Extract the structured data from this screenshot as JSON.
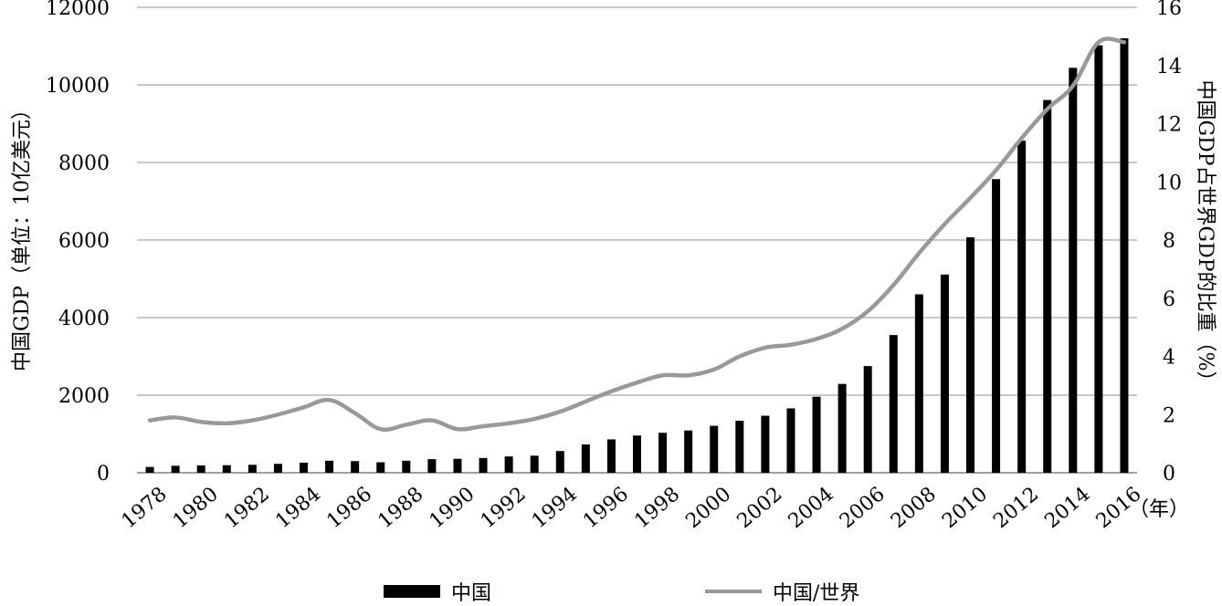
{
  "chart_data": {
    "type": "bar",
    "categories": [
      "1978",
      "1979",
      "1980",
      "1981",
      "1982",
      "1983",
      "1984",
      "1985",
      "1986",
      "1987",
      "1988",
      "1989",
      "1990",
      "1991",
      "1992",
      "1993",
      "1994",
      "1995",
      "1996",
      "1997",
      "1998",
      "1999",
      "2000",
      "2001",
      "2002",
      "2003",
      "2004",
      "2005",
      "2006",
      "2007",
      "2008",
      "2009",
      "2010",
      "2011",
      "2012",
      "2013",
      "2014",
      "2015",
      "2016"
    ],
    "x_tick_labels": [
      "1978",
      "1980",
      "1982",
      "1984",
      "1986",
      "1988",
      "1990",
      "1992",
      "1994",
      "1996",
      "1998",
      "2000",
      "2002",
      "2004",
      "2006",
      "2008",
      "2010",
      "2012",
      "2014",
      "2016"
    ],
    "x_unit": "（年）",
    "ylabel": "中国GDP（单位：10亿美元）",
    "y2label": "中国GDP占世界GDP的比重（%）",
    "ylim": [
      0,
      12000
    ],
    "y2lim": [
      0,
      16
    ],
    "y_ticks": [
      "0",
      "2000",
      "4000",
      "6000",
      "8000",
      "10000",
      "12000"
    ],
    "y2_ticks": [
      "0",
      "2",
      "4",
      "6",
      "8",
      "10",
      "12",
      "14",
      "16"
    ],
    "grid": true,
    "legend_position": "bottom",
    "series": [
      {
        "name": "中国",
        "type": "bar",
        "axis": "left",
        "color": "#000000",
        "values": [
          150,
          180,
          190,
          195,
          205,
          230,
          260,
          310,
          300,
          270,
          310,
          350,
          360,
          380,
          420,
          440,
          560,
          730,
          860,
          960,
          1030,
          1090,
          1210,
          1340,
          1470,
          1660,
          1960,
          2290,
          2750,
          3550,
          4600,
          5110,
          6070,
          7570,
          8560,
          9610,
          10440,
          11020,
          11200
        ]
      },
      {
        "name": "中国/世界",
        "type": "line",
        "axis": "right",
        "color": "#999999",
        "values": [
          1.8,
          1.9,
          1.75,
          1.7,
          1.8,
          2.0,
          2.25,
          2.5,
          2.05,
          1.5,
          1.65,
          1.8,
          1.5,
          1.6,
          1.7,
          1.85,
          2.1,
          2.45,
          2.8,
          3.1,
          3.35,
          3.35,
          3.55,
          4.0,
          4.3,
          4.4,
          4.6,
          4.95,
          5.55,
          6.45,
          7.55,
          8.55,
          9.45,
          10.4,
          11.5,
          12.5,
          13.3,
          14.8,
          14.8
        ]
      }
    ]
  }
}
